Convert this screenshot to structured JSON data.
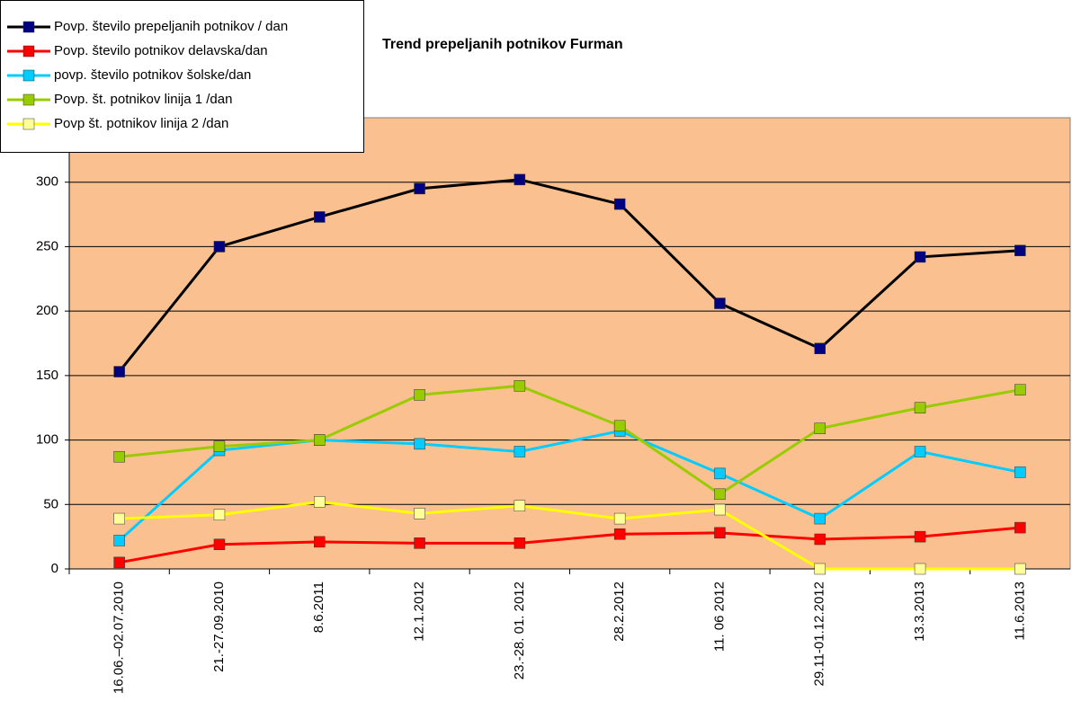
{
  "chart_data": {
    "type": "line",
    "title": "Trend prepeljanih potnikov Furman",
    "categories": [
      "16.06.–02.07.2010",
      "21.-27.09.2010",
      "8.6.2011",
      "12.1.2012",
      "23.-28. 01. 2012",
      "28.2.2012",
      "11. 06 2012",
      "29.11-01.12.2012",
      "13.3.2013",
      "11.6.2013"
    ],
    "series": [
      {
        "name": "Povp. število prepeljanih potnikov / dan",
        "color": "#000000",
        "marker_color": "#000080",
        "values": [
          153,
          250,
          273,
          295,
          302,
          283,
          206,
          171,
          242,
          247
        ]
      },
      {
        "name": "Povp. število potnikov delavska/dan",
        "color": "#ff0000",
        "marker_color": "#ff0000",
        "values": [
          5,
          19,
          21,
          20,
          20,
          27,
          28,
          23,
          25,
          32
        ]
      },
      {
        "name": "povp. število potnikov šolske/dan",
        "color": "#00ccff",
        "marker_color": "#00ccff",
        "values": [
          22,
          92,
          100,
          97,
          91,
          107,
          74,
          39,
          91,
          75
        ]
      },
      {
        "name": "Povp. št. potnikov linija 1 /dan",
        "color": "#99cc00",
        "marker_color": "#99cc00",
        "values": [
          87,
          95,
          100,
          135,
          142,
          111,
          58,
          109,
          125,
          139
        ]
      },
      {
        "name": "Povp št. potnikov linija 2 /dan",
        "color": "#ffff00",
        "marker_color": "#ffff99",
        "values": [
          39,
          42,
          52,
          43,
          49,
          39,
          46,
          0,
          0,
          0
        ]
      }
    ],
    "ylim": [
      0,
      350
    ],
    "yticks": [
      0,
      50,
      100,
      150,
      200,
      250,
      300
    ],
    "grid": true,
    "legend": "top-left"
  }
}
